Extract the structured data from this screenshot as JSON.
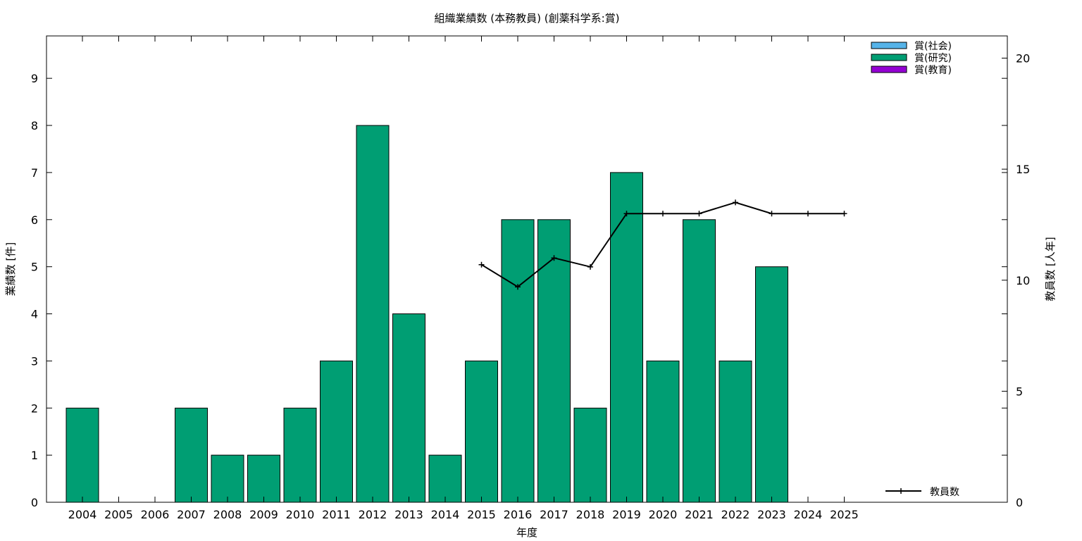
{
  "chart_data": {
    "type": "bar",
    "title": "組織業績数 (本務教員) (創薬科学系:賞)",
    "xlabel": "年度",
    "ylabel": "業績数 [件]",
    "y2label": "教員数 [人年]",
    "categories": [
      "2004",
      "2005",
      "2006",
      "2007",
      "2008",
      "2009",
      "2010",
      "2011",
      "2012",
      "2013",
      "2014",
      "2015",
      "2016",
      "2017",
      "2018",
      "2019",
      "2020",
      "2021",
      "2022",
      "2023",
      "2024",
      "2025"
    ],
    "series": [
      {
        "name": "賞(社会)",
        "color": "#56b4e9",
        "values": [
          0,
          0,
          0,
          0,
          0,
          0,
          0,
          0,
          0,
          0,
          0,
          0,
          0,
          0,
          0,
          0,
          0,
          0,
          0,
          0,
          0,
          0
        ]
      },
      {
        "name": "賞(研究)",
        "color": "#009e73",
        "values": [
          2,
          0,
          0,
          2,
          1,
          1,
          2,
          3,
          8,
          4,
          1,
          3,
          6,
          6,
          2,
          7,
          3,
          6,
          3,
          5,
          0,
          0
        ]
      },
      {
        "name": "賞(教育)",
        "color": "#9400d3",
        "values": [
          0,
          0,
          0,
          0,
          0,
          0,
          0,
          0,
          0,
          0,
          0,
          0,
          0,
          0,
          0,
          0,
          0,
          0,
          0,
          0,
          0,
          0
        ]
      }
    ],
    "line_series": {
      "name": "教員数",
      "axis": "right",
      "color": "#000000",
      "values": [
        null,
        null,
        null,
        null,
        null,
        null,
        null,
        null,
        null,
        null,
        null,
        10.7,
        9.7,
        11.0,
        10.6,
        13.0,
        13.0,
        13.0,
        13.5,
        13.0,
        13.0,
        13.0
      ]
    },
    "ylim": [
      0,
      9.9
    ],
    "y2lim": [
      0,
      21
    ],
    "yticks": [
      0,
      1,
      2,
      3,
      4,
      5,
      6,
      7,
      8,
      9
    ],
    "y2ticks": [
      0,
      5,
      10,
      15,
      20
    ],
    "grid": false,
    "legend_position": "top-right"
  }
}
